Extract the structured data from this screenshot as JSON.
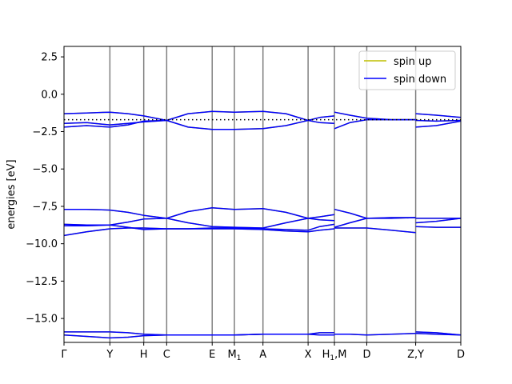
{
  "chart_data": {
    "type": "line",
    "title": "",
    "xlabel": "",
    "ylabel": "energies [eV]",
    "ylim": [
      -16.6,
      3.2
    ],
    "yticks": [
      -15.0,
      -12.5,
      -10.0,
      -7.5,
      -5.0,
      -2.5,
      0.0,
      2.5
    ],
    "ytick_labels": [
      "−15.0",
      "−12.5",
      "−10.0",
      "−7.5",
      "−5.0",
      "−2.5",
      "0.0",
      "2.5"
    ],
    "xlim": [
      0.0,
      10.55
    ],
    "kpoints": [
      {
        "label": "Γ",
        "x": 0.0
      },
      {
        "label": "Y",
        "x": 1.22
      },
      {
        "label": "H",
        "x": 2.12
      },
      {
        "label": "C",
        "x": 2.73
      },
      {
        "label": "E",
        "x": 3.94
      },
      {
        "label": "M",
        "sub": "1",
        "x": 4.53
      },
      {
        "label": "A",
        "x": 5.29
      },
      {
        "label": "X",
        "x": 6.49
      },
      {
        "label": "H",
        "sub": "1",
        "suffix": ",M",
        "x": 7.19
      },
      {
        "label": "D",
        "x": 8.05
      },
      {
        "label": "Z,Y",
        "x": 9.35
      },
      {
        "label": "D",
        "x": 10.55
      }
    ],
    "fermi_level": -1.7,
    "grid": false,
    "legend_position": "upper-right",
    "colors": {
      "spin_up": "#bfbf00",
      "spin_down": "#0000ff",
      "kpoint_lines": "#808080",
      "fermi_line": "#000000"
    },
    "series": [
      {
        "name": "spin up",
        "color": "#bfbf00",
        "bands": [
          {
            "x": [
              0.0,
              0.6,
              1.22,
              1.7,
              2.12,
              2.73,
              3.3,
              3.94,
              4.53,
              5.29,
              5.9,
              6.49,
              6.8,
              7.19
            ],
            "y": [
              -1.3,
              -1.25,
              -1.2,
              -1.3,
              -1.45,
              -1.75,
              -1.3,
              -1.15,
              -1.2,
              -1.15,
              -1.3,
              -1.75,
              -1.55,
              -1.45
            ]
          },
          {
            "x": [
              7.19,
              7.6,
              8.05,
              8.7,
              9.35
            ],
            "y": [
              -1.2,
              -1.4,
              -1.6,
              -1.7,
              -1.7
            ]
          },
          {
            "x": [
              9.35,
              9.9,
              10.55
            ],
            "y": [
              -1.3,
              -1.4,
              -1.55
            ]
          },
          {
            "x": [
              0.0,
              0.6,
              1.22,
              1.7,
              2.12,
              2.73,
              3.3,
              3.94,
              4.53,
              5.29,
              5.9,
              6.49,
              6.8,
              7.19
            ],
            "y": [
              -2.2,
              -2.1,
              -2.2,
              -2.05,
              -1.8,
              -1.75,
              -2.2,
              -2.35,
              -2.35,
              -2.3,
              -2.1,
              -1.75,
              -1.9,
              -1.95
            ]
          },
          {
            "x": [
              7.19,
              7.6,
              8.05,
              8.7,
              9.35
            ],
            "y": [
              -2.3,
              -1.9,
              -1.7,
              -1.7,
              -1.7
            ]
          },
          {
            "x": [
              9.35,
              9.9,
              10.55
            ],
            "y": [
              -2.2,
              -2.1,
              -1.8
            ]
          },
          {
            "x": [
              0.0,
              0.6,
              1.22,
              1.7,
              2.12,
              2.73
            ],
            "y": [
              -1.95,
              -1.9,
              -2.05,
              -1.95,
              -1.85,
              -1.75
            ]
          },
          {
            "x": [
              9.35,
              9.9,
              10.55
            ],
            "y": [
              -1.75,
              -1.8,
              -1.75
            ]
          },
          {
            "x": [
              0.0,
              0.6,
              1.22,
              1.7,
              2.12,
              2.73,
              3.3,
              3.94,
              4.53,
              5.29,
              5.9,
              6.49,
              6.8,
              7.19
            ],
            "y": [
              -7.7,
              -7.7,
              -7.75,
              -7.9,
              -8.1,
              -8.3,
              -7.85,
              -7.6,
              -7.7,
              -7.65,
              -7.9,
              -8.3,
              -8.2,
              -8.05
            ]
          },
          {
            "x": [
              7.19,
              7.6,
              8.05,
              8.7,
              9.35
            ],
            "y": [
              -7.7,
              -7.95,
              -8.3,
              -8.3,
              -8.25
            ]
          },
          {
            "x": [
              9.35,
              9.9,
              10.55
            ],
            "y": [
              -8.3,
              -8.3,
              -8.3
            ]
          },
          {
            "x": [
              0.0,
              0.6,
              1.22,
              1.7,
              2.12,
              2.73
            ],
            "y": [
              -8.7,
              -8.75,
              -8.75,
              -8.55,
              -8.35,
              -8.3
            ]
          },
          {
            "x": [
              2.73,
              3.3,
              3.94,
              4.53,
              5.29,
              5.9,
              6.49,
              6.8,
              7.19
            ],
            "y": [
              -8.3,
              -8.6,
              -8.85,
              -8.9,
              -8.95,
              -8.6,
              -8.3,
              -8.4,
              -8.45
            ]
          },
          {
            "x": [
              0.0,
              0.6,
              1.22,
              1.7,
              2.12,
              2.73,
              3.3,
              3.94,
              4.53,
              5.29,
              5.9,
              6.49,
              6.8,
              7.19
            ],
            "y": [
              -8.8,
              -8.8,
              -8.75,
              -8.9,
              -9.05,
              -9.0,
              -9.0,
              -8.95,
              -8.95,
              -9.0,
              -9.05,
              -9.1,
              -8.85,
              -8.7
            ]
          },
          {
            "x": [
              7.19,
              7.6,
              8.05,
              8.7,
              9.35
            ],
            "y": [
              -8.9,
              -8.6,
              -8.3,
              -8.25,
              -8.25
            ]
          },
          {
            "x": [
              9.35,
              9.9,
              10.55
            ],
            "y": [
              -8.6,
              -8.5,
              -8.3
            ]
          },
          {
            "x": [
              0.0,
              0.6,
              1.22,
              1.7,
              2.12,
              2.73,
              3.3,
              3.94,
              4.53,
              5.29,
              5.9,
              6.49,
              6.8,
              7.19
            ],
            "y": [
              -9.45,
              -9.2,
              -9.0,
              -8.95,
              -8.95,
              -9.0,
              -9.0,
              -9.0,
              -9.0,
              -9.05,
              -9.15,
              -9.2,
              -9.1,
              -9.0
            ]
          },
          {
            "x": [
              7.19,
              7.6,
              8.05,
              8.7,
              9.35
            ],
            "y": [
              -8.95,
              -8.95,
              -8.95,
              -9.1,
              -9.25
            ]
          },
          {
            "x": [
              9.35,
              9.9,
              10.55
            ],
            "y": [
              -8.85,
              -8.9,
              -8.9
            ]
          },
          {
            "x": [
              0.0,
              0.6,
              1.22,
              1.7,
              2.12,
              2.73,
              3.3,
              3.94,
              4.53,
              5.29,
              5.9,
              6.49,
              6.8,
              7.19
            ],
            "y": [
              -15.9,
              -15.9,
              -15.9,
              -15.95,
              -16.05,
              -16.1,
              -16.1,
              -16.1,
              -16.1,
              -16.05,
              -16.05,
              -16.05,
              -15.95,
              -15.95
            ]
          },
          {
            "x": [
              7.19,
              7.6,
              8.05,
              8.7,
              9.35
            ],
            "y": [
              -16.05,
              -16.05,
              -16.1,
              -16.05,
              -16.0
            ]
          },
          {
            "x": [
              9.35,
              9.9,
              10.55
            ],
            "y": [
              -15.9,
              -15.95,
              -16.1
            ]
          },
          {
            "x": [
              0.0,
              0.6,
              1.22,
              1.7,
              2.12,
              2.73,
              3.3,
              3.94,
              4.53,
              5.29,
              5.9,
              6.49,
              6.8,
              7.19
            ],
            "y": [
              -16.1,
              -16.2,
              -16.3,
              -16.25,
              -16.15,
              -16.1,
              -16.1,
              -16.1,
              -16.1,
              -16.05,
              -16.05,
              -16.05,
              -16.1,
              -16.1
            ]
          },
          {
            "x": [
              9.35,
              9.9,
              10.55
            ],
            "y": [
              -16.0,
              -16.05,
              -16.1
            ]
          }
        ]
      },
      {
        "name": "spin down",
        "color": "#0000ff",
        "bands": [
          {
            "x": [
              0.0,
              0.6,
              1.22,
              1.7,
              2.12,
              2.73,
              3.3,
              3.94,
              4.53,
              5.29,
              5.9,
              6.49,
              6.8,
              7.19
            ],
            "y": [
              -1.3,
              -1.25,
              -1.2,
              -1.3,
              -1.45,
              -1.75,
              -1.3,
              -1.15,
              -1.2,
              -1.15,
              -1.3,
              -1.75,
              -1.55,
              -1.45
            ]
          },
          {
            "x": [
              7.19,
              7.6,
              8.05,
              8.7,
              9.35
            ],
            "y": [
              -1.2,
              -1.4,
              -1.6,
              -1.7,
              -1.7
            ]
          },
          {
            "x": [
              9.35,
              9.9,
              10.55
            ],
            "y": [
              -1.3,
              -1.4,
              -1.55
            ]
          },
          {
            "x": [
              0.0,
              0.6,
              1.22,
              1.7,
              2.12,
              2.73,
              3.3,
              3.94,
              4.53,
              5.29,
              5.9,
              6.49,
              6.8,
              7.19
            ],
            "y": [
              -2.2,
              -2.1,
              -2.2,
              -2.05,
              -1.8,
              -1.75,
              -2.2,
              -2.35,
              -2.35,
              -2.3,
              -2.1,
              -1.75,
              -1.9,
              -1.95
            ]
          },
          {
            "x": [
              7.19,
              7.6,
              8.05,
              8.7,
              9.35
            ],
            "y": [
              -2.3,
              -1.9,
              -1.7,
              -1.7,
              -1.7
            ]
          },
          {
            "x": [
              9.35,
              9.9,
              10.55
            ],
            "y": [
              -2.2,
              -2.1,
              -1.8
            ]
          },
          {
            "x": [
              0.0,
              0.6,
              1.22,
              1.7,
              2.12,
              2.73
            ],
            "y": [
              -1.95,
              -1.9,
              -2.05,
              -1.95,
              -1.85,
              -1.75
            ]
          },
          {
            "x": [
              9.35,
              9.9,
              10.55
            ],
            "y": [
              -1.75,
              -1.8,
              -1.75
            ]
          },
          {
            "x": [
              0.0,
              0.6,
              1.22,
              1.7,
              2.12,
              2.73,
              3.3,
              3.94,
              4.53,
              5.29,
              5.9,
              6.49,
              6.8,
              7.19
            ],
            "y": [
              -7.7,
              -7.7,
              -7.75,
              -7.9,
              -8.1,
              -8.3,
              -7.85,
              -7.6,
              -7.7,
              -7.65,
              -7.9,
              -8.3,
              -8.2,
              -8.05
            ]
          },
          {
            "x": [
              7.19,
              7.6,
              8.05,
              8.7,
              9.35
            ],
            "y": [
              -7.7,
              -7.95,
              -8.3,
              -8.3,
              -8.25
            ]
          },
          {
            "x": [
              9.35,
              9.9,
              10.55
            ],
            "y": [
              -8.3,
              -8.3,
              -8.3
            ]
          },
          {
            "x": [
              0.0,
              0.6,
              1.22,
              1.7,
              2.12,
              2.73
            ],
            "y": [
              -8.7,
              -8.75,
              -8.75,
              -8.55,
              -8.35,
              -8.3
            ]
          },
          {
            "x": [
              2.73,
              3.3,
              3.94,
              4.53,
              5.29,
              5.9,
              6.49,
              6.8,
              7.19
            ],
            "y": [
              -8.3,
              -8.6,
              -8.85,
              -8.9,
              -8.95,
              -8.6,
              -8.3,
              -8.4,
              -8.45
            ]
          },
          {
            "x": [
              0.0,
              0.6,
              1.22,
              1.7,
              2.12,
              2.73,
              3.3,
              3.94,
              4.53,
              5.29,
              5.9,
              6.49,
              6.8,
              7.19
            ],
            "y": [
              -8.8,
              -8.8,
              -8.75,
              -8.9,
              -9.05,
              -9.0,
              -9.0,
              -8.95,
              -8.95,
              -9.0,
              -9.05,
              -9.1,
              -8.85,
              -8.7
            ]
          },
          {
            "x": [
              7.19,
              7.6,
              8.05,
              8.7,
              9.35
            ],
            "y": [
              -8.9,
              -8.6,
              -8.3,
              -8.25,
              -8.25
            ]
          },
          {
            "x": [
              9.35,
              9.9,
              10.55
            ],
            "y": [
              -8.6,
              -8.5,
              -8.3
            ]
          },
          {
            "x": [
              0.0,
              0.6,
              1.22,
              1.7,
              2.12,
              2.73,
              3.3,
              3.94,
              4.53,
              5.29,
              5.9,
              6.49,
              6.8,
              7.19
            ],
            "y": [
              -9.45,
              -9.2,
              -9.0,
              -8.95,
              -8.95,
              -9.0,
              -9.0,
              -9.0,
              -9.0,
              -9.05,
              -9.15,
              -9.2,
              -9.1,
              -9.0
            ]
          },
          {
            "x": [
              7.19,
              7.6,
              8.05,
              8.7,
              9.35
            ],
            "y": [
              -8.95,
              -8.95,
              -8.95,
              -9.1,
              -9.25
            ]
          },
          {
            "x": [
              9.35,
              9.9,
              10.55
            ],
            "y": [
              -8.85,
              -8.9,
              -8.9
            ]
          },
          {
            "x": [
              0.0,
              0.6,
              1.22,
              1.7,
              2.12,
              2.73,
              3.3,
              3.94,
              4.53,
              5.29,
              5.9,
              6.49,
              6.8,
              7.19
            ],
            "y": [
              -15.9,
              -15.9,
              -15.9,
              -15.95,
              -16.05,
              -16.1,
              -16.1,
              -16.1,
              -16.1,
              -16.05,
              -16.05,
              -16.05,
              -15.95,
              -15.95
            ]
          },
          {
            "x": [
              7.19,
              7.6,
              8.05,
              8.7,
              9.35
            ],
            "y": [
              -16.05,
              -16.05,
              -16.1,
              -16.05,
              -16.0
            ]
          },
          {
            "x": [
              9.35,
              9.9,
              10.55
            ],
            "y": [
              -15.9,
              -15.95,
              -16.1
            ]
          },
          {
            "x": [
              0.0,
              0.6,
              1.22,
              1.7,
              2.12,
              2.73,
              3.3,
              3.94,
              4.53,
              5.29,
              5.9,
              6.49,
              6.8,
              7.19
            ],
            "y": [
              -16.1,
              -16.2,
              -16.3,
              -16.25,
              -16.15,
              -16.1,
              -16.1,
              -16.1,
              -16.1,
              -16.05,
              -16.05,
              -16.05,
              -16.1,
              -16.1
            ]
          },
          {
            "x": [
              9.35,
              9.9,
              10.55
            ],
            "y": [
              -16.0,
              -16.05,
              -16.1
            ]
          }
        ]
      }
    ]
  }
}
